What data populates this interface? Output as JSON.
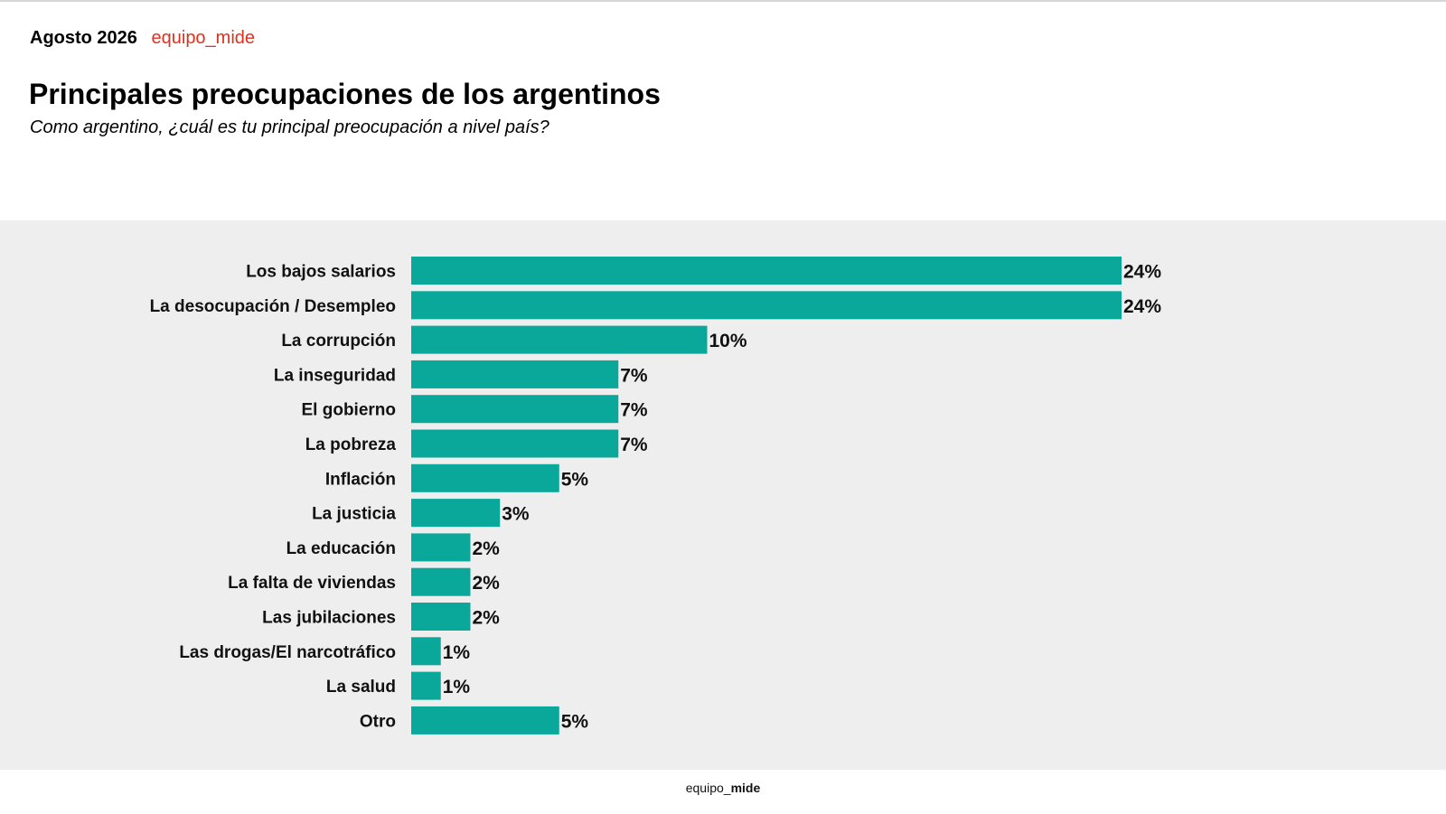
{
  "header": {
    "date": "Agosto 2026",
    "brand": "equipo_mide"
  },
  "title": "Principales preocupaciones de los argentinos",
  "subtitle": "Como argentino, ¿cuál es tu principal preocupación a nivel país?",
  "footer": {
    "brand_prefix": "equipo_",
    "brand_suffix": "mide"
  },
  "colors": {
    "bar": "#0aa89b",
    "panel_background": "#eeeeee",
    "brand_accent": "#e0301e"
  },
  "chart_data": {
    "type": "bar",
    "orientation": "horizontal",
    "categories": [
      "Los bajos salarios",
      "La desocupación / Desempleo",
      "La corrupción",
      "La inseguridad",
      "El gobierno",
      "La pobreza",
      "Inflación",
      "La justicia",
      "La educación",
      "La falta de viviendas",
      "Las jubilaciones",
      "Las drogas/El narcotráfico",
      "La salud",
      "Otro"
    ],
    "values": [
      24,
      24,
      10,
      7,
      7,
      7,
      5,
      3,
      2,
      2,
      2,
      1,
      1,
      5
    ],
    "value_labels": [
      "24%",
      "24%",
      "10%",
      "7%",
      "7%",
      "7%",
      "5%",
      "3%",
      "2%",
      "2%",
      "2%",
      "1%",
      "1%",
      "5%"
    ],
    "unit": "%",
    "grid": false,
    "legend": "none"
  }
}
